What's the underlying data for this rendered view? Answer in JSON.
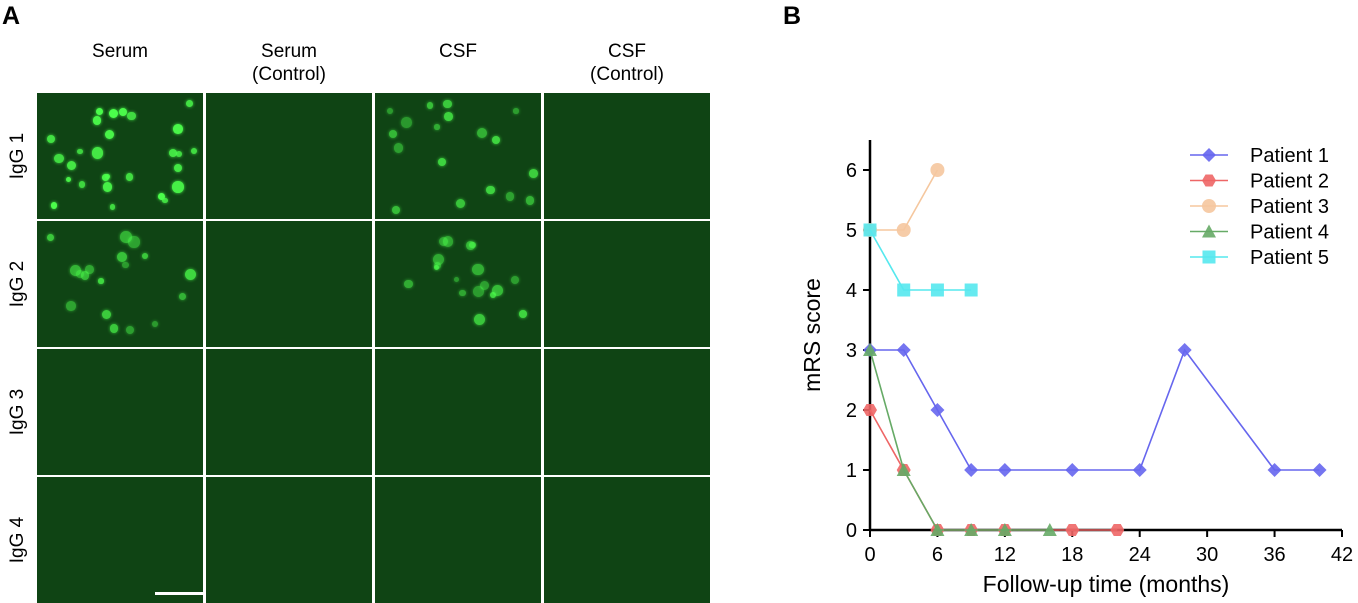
{
  "panels": {
    "a": "A",
    "b": "B"
  },
  "micrograph": {
    "columns": [
      "Serum",
      "Serum\n(Control)",
      "CSF",
      "CSF\n(Control)"
    ],
    "rows": [
      "IgG 1",
      "IgG 2",
      "IgG 3",
      "IgG 4"
    ],
    "colors": {
      "background": "#0f4414",
      "signal": "#4cff4c"
    },
    "staining": [
      [
        "strong",
        "none",
        "moderate",
        "none"
      ],
      [
        "moderate",
        "none",
        "moderate",
        "none"
      ],
      [
        "none",
        "none",
        "none",
        "none"
      ],
      [
        "none",
        "none",
        "none",
        "none"
      ]
    ]
  },
  "chart_data": {
    "type": "line",
    "xlabel": "Follow-up time (months)",
    "ylabel": "mRS score",
    "xlim": [
      0,
      42
    ],
    "ylim": [
      0,
      6.5
    ],
    "xticks": [
      "0",
      "6",
      "12",
      "18",
      "24",
      "30",
      "36",
      "42"
    ],
    "yticks": [
      "0",
      "1",
      "2",
      "3",
      "4",
      "5",
      "6"
    ],
    "legend_position": "top-right",
    "series": [
      {
        "name": "Patient 1",
        "marker": "diamond",
        "color": "#6666ee",
        "x": [
          0,
          3,
          6,
          9,
          12,
          18,
          24,
          28,
          36,
          40
        ],
        "y": [
          3,
          3,
          2,
          1,
          1,
          1,
          1,
          3,
          1,
          1
        ]
      },
      {
        "name": "Patient 2",
        "marker": "hexagon",
        "color": "#ee6666",
        "x": [
          0,
          3,
          6,
          9,
          12,
          18,
          22
        ],
        "y": [
          2,
          1,
          0,
          0,
          0,
          0,
          0
        ]
      },
      {
        "name": "Patient 3",
        "marker": "circle",
        "color": "#f5c79e",
        "x": [
          0,
          3,
          6
        ],
        "y": [
          5,
          5,
          6
        ]
      },
      {
        "name": "Patient 4",
        "marker": "triangle",
        "color": "#66aa66",
        "x": [
          0,
          3,
          6,
          9,
          12,
          16
        ],
        "y": [
          3,
          1,
          0,
          0,
          0,
          0
        ]
      },
      {
        "name": "Patient 5",
        "marker": "square",
        "color": "#55e8ee",
        "x": [
          0,
          3,
          6,
          9
        ],
        "y": [
          5,
          4,
          4,
          4
        ]
      }
    ]
  }
}
